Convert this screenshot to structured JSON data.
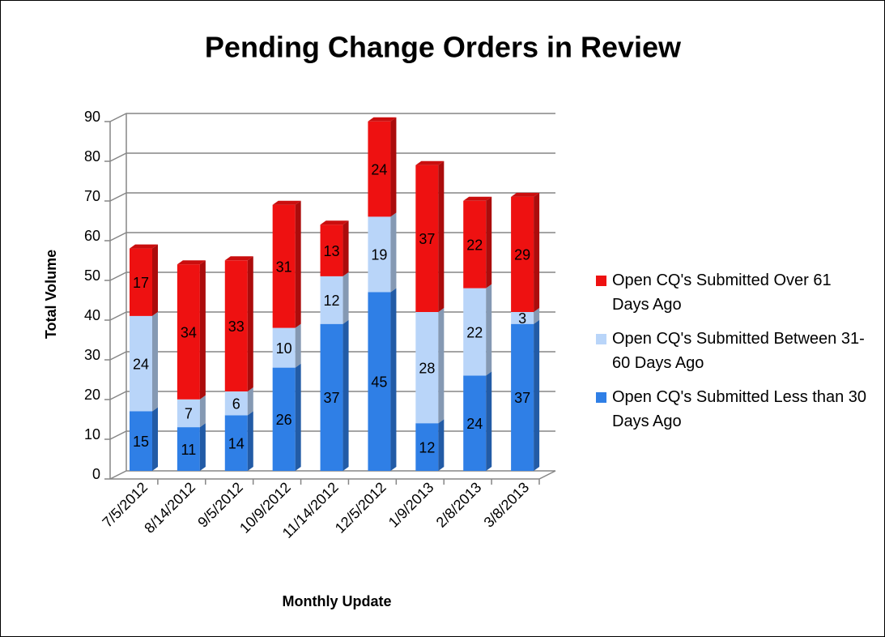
{
  "chart_data": {
    "type": "bar",
    "stacked": true,
    "three_d": true,
    "title": "Pending Change Orders in Review",
    "x_label": "Monthly Update",
    "y_label": "Total Volume",
    "categories": [
      "7/5/2012",
      "8/14/2012",
      "9/5/2012",
      "10/9/2012",
      "11/14/2012",
      "12/5/2012",
      "1/9/2013",
      "2/8/2013",
      "3/8/2013"
    ],
    "series": [
      {
        "name": "Open CQ's Submitted Less than 30 Days Ago",
        "color": "#2f7fe6",
        "values": [
          15,
          11,
          14,
          26,
          37,
          45,
          12,
          24,
          37
        ]
      },
      {
        "name": "Open CQ's Submitted Between 31-60 Days Ago",
        "color": "#b9d5f9",
        "values": [
          24,
          7,
          6,
          10,
          12,
          19,
          28,
          22,
          3
        ]
      },
      {
        "name": "Open CQ's Submitted Over 61 Days Ago",
        "color": "#ee1111",
        "values": [
          17,
          34,
          33,
          31,
          13,
          24,
          37,
          22,
          29
        ]
      }
    ],
    "ylim": [
      0,
      90
    ],
    "yticks": [
      0,
      10,
      20,
      30,
      40,
      50,
      60,
      70,
      80,
      90
    ],
    "grid": true,
    "legend": "right"
  }
}
